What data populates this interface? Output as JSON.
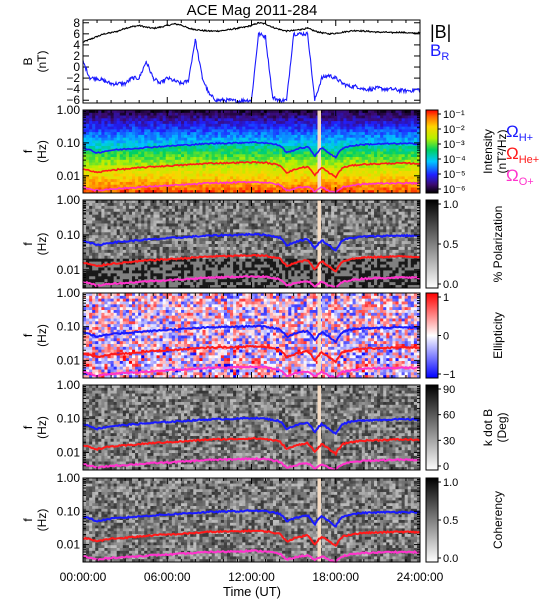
{
  "chart_data": {
    "type": "multi-panel",
    "title": "ACE Mag 2011-284",
    "xlabel": "Time (UT)",
    "x_range_hours": [
      0,
      24
    ],
    "x_ticks": [
      "00:00:00",
      "06:00:00",
      "12:00:00",
      "18:00:00",
      "24:00:00"
    ],
    "data_gap_hours": [
      16.7,
      16.95
    ],
    "panels": [
      {
        "type": "line",
        "ylabel": "B",
        "yunit": "(nT)",
        "ylim": [
          -6.5,
          8.5
        ],
        "yticks": [
          "8",
          "6",
          "4",
          "2",
          "0",
          "−2",
          "−4",
          "−6"
        ],
        "legend": [
          {
            "label": "|B|",
            "color": "#000000"
          },
          {
            "label": "B",
            "sub": "R",
            "color": "#1a1aff"
          }
        ],
        "series": [
          {
            "name": "|B|",
            "color": "#000000",
            "x": [
              0,
              0.5,
              1,
              1.5,
              2,
              2.5,
              3,
              3.5,
              4,
              4.5,
              5,
              5.5,
              6,
              6.5,
              7,
              7.5,
              8,
              8.5,
              9,
              9.5,
              10,
              10.5,
              11,
              11.5,
              12,
              12.5,
              13,
              13.5,
              14,
              14.5,
              15,
              15.5,
              16,
              16.5,
              17,
              17.5,
              18,
              18.5,
              19,
              19.5,
              20,
              20.5,
              21,
              21.5,
              22,
              22.5,
              23,
              23.5,
              24
            ],
            "y": [
              4.5,
              5,
              5.5,
              6,
              6.2,
              6.5,
              7,
              7.3,
              7.5,
              7.2,
              7,
              7.2,
              7.5,
              7.8,
              7.6,
              7,
              6.8,
              6.6,
              6.5,
              6.5,
              6.6,
              6.8,
              7,
              7.2,
              7.5,
              8,
              7.8,
              7.2,
              6.8,
              6.5,
              6.6,
              6.8,
              7,
              6.5,
              6.2,
              6,
              6.1,
              6.3,
              6.5,
              6.6,
              6.5,
              6.4,
              6.3,
              6.3,
              6.2,
              6.3,
              6.2,
              6.1,
              6.2
            ]
          },
          {
            "name": "B_R",
            "color": "#1a1aff",
            "x": [
              0,
              0.5,
              1,
              1.5,
              2,
              2.5,
              3,
              3.5,
              4,
              4.5,
              5,
              5.5,
              6,
              6.5,
              7,
              7.5,
              8,
              8.5,
              9,
              9.5,
              10,
              10.5,
              11,
              11.5,
              12,
              12.5,
              13,
              13.5,
              14,
              14.5,
              15,
              15.5,
              16,
              16.5,
              17,
              17.5,
              18,
              18.5,
              19,
              19.5,
              20,
              20.5,
              21,
              21.5,
              22,
              22.5,
              23,
              23.5,
              24
            ],
            "y": [
              1,
              -2,
              -2,
              -2.5,
              -3,
              -3,
              -3,
              -2,
              -2,
              1,
              -2,
              -3,
              -2,
              -2.5,
              -3,
              -2.5,
              5,
              -2,
              -5,
              -6,
              -6,
              -6,
              -6.2,
              -6,
              -6,
              6,
              5.5,
              -5.5,
              -6,
              -6,
              6,
              6,
              6,
              -6,
              -2,
              -1.5,
              -2,
              -3,
              -3.5,
              -3.5,
              -4,
              -4,
              -3.8,
              -4,
              -4,
              -4.2,
              -4.3,
              -4.2,
              -4
            ]
          }
        ]
      },
      {
        "type": "heatmap",
        "ylabel": "f",
        "yunit": "(Hz)",
        "colorbar": {
          "label": "Intensity",
          "unit": "(nT²/Hz)",
          "scale": "rainbow",
          "ticks": [
            "10⁻¹",
            "10⁻²",
            "10⁻³",
            "10⁻⁴",
            "10⁻⁵",
            "10⁻⁶"
          ]
        },
        "legend": [
          {
            "label": "Ω",
            "sub": "H+",
            "color": "#1a1aff"
          },
          {
            "label": "Ω",
            "sub": "He+",
            "color": "#ff1a1a"
          },
          {
            "label": "Ω",
            "sub": "O+",
            "color": "#ff33cc"
          }
        ]
      },
      {
        "type": "heatmap",
        "ylabel": "f",
        "yunit": "(Hz)",
        "colorbar": {
          "label": "% Polarization",
          "unit": "",
          "scale": "gray",
          "ticks": [
            "1.0",
            "0.5",
            "0.0"
          ]
        }
      },
      {
        "type": "heatmap",
        "ylabel": "f",
        "yunit": "(Hz)",
        "colorbar": {
          "label": "Ellipticity",
          "unit": "",
          "scale": "bwr",
          "ticks": [
            "1",
            "0",
            "−1"
          ]
        }
      },
      {
        "type": "heatmap",
        "ylabel": "f",
        "yunit": "(Hz)",
        "colorbar": {
          "label": "k dot B",
          "unit": "(Deg)",
          "scale": "gray",
          "ticks": [
            "90",
            "60",
            "30",
            "0"
          ]
        }
      },
      {
        "type": "heatmap",
        "ylabel": "f",
        "yunit": "(Hz)",
        "colorbar": {
          "label": "Coherency",
          "unit": "",
          "scale": "gray",
          "ticks": [
            "1.0",
            "0.5",
            "0.0"
          ]
        }
      }
    ],
    "freq_axis": {
      "scale": "log",
      "ylim": [
        0.003,
        1.0
      ],
      "yticks": [
        "1.00",
        "0.10",
        "0.01"
      ]
    },
    "gyrofrequency_series": [
      {
        "name": "H+",
        "color": "#1a1aff",
        "x": [
          0,
          1,
          2,
          3,
          4,
          5,
          6,
          7,
          8,
          9,
          10,
          11,
          12,
          13,
          14,
          14.5,
          15,
          15.5,
          16,
          16.5,
          17,
          17.5,
          18,
          18.5,
          19,
          20,
          21,
          22,
          23,
          24
        ],
        "y": [
          0.07,
          0.05,
          0.06,
          0.065,
          0.07,
          0.075,
          0.08,
          0.085,
          0.09,
          0.095,
          0.098,
          0.1,
          0.105,
          0.1,
          0.085,
          0.05,
          0.06,
          0.07,
          0.075,
          0.04,
          0.07,
          0.05,
          0.035,
          0.07,
          0.08,
          0.09,
          0.092,
          0.095,
          0.095,
          0.094
        ]
      },
      {
        "name": "He+",
        "color": "#ff1a1a",
        "x": [
          0,
          1,
          2,
          3,
          4,
          5,
          6,
          7,
          8,
          9,
          10,
          11,
          12,
          13,
          14,
          14.5,
          15,
          15.5,
          16,
          16.5,
          17,
          17.5,
          18,
          18.5,
          19,
          20,
          21,
          22,
          23,
          24
        ],
        "y": [
          0.016,
          0.0125,
          0.015,
          0.016,
          0.0175,
          0.019,
          0.02,
          0.021,
          0.0225,
          0.024,
          0.0245,
          0.025,
          0.026,
          0.025,
          0.021,
          0.0125,
          0.015,
          0.0175,
          0.019,
          0.01,
          0.0175,
          0.0125,
          0.009,
          0.0175,
          0.02,
          0.0225,
          0.023,
          0.024,
          0.024,
          0.0235
        ]
      },
      {
        "name": "O+",
        "color": "#ff33cc",
        "x": [
          0,
          1,
          2,
          3,
          4,
          5,
          6,
          7,
          8,
          9,
          10,
          11,
          12,
          13,
          14,
          14.5,
          15,
          15.5,
          16,
          16.5,
          17,
          17.5,
          18,
          18.5,
          19,
          20,
          21,
          22,
          23,
          24
        ],
        "y": [
          0.0045,
          0.0035,
          0.004,
          0.0042,
          0.0045,
          0.0048,
          0.005,
          0.0053,
          0.0056,
          0.006,
          0.0061,
          0.0063,
          0.0065,
          0.0063,
          0.0053,
          0.0035,
          0.004,
          0.0045,
          0.0048,
          0.0033,
          0.0045,
          0.0035,
          0.0031,
          0.0045,
          0.005,
          0.0056,
          0.0058,
          0.006,
          0.006,
          0.0059
        ]
      }
    ]
  }
}
